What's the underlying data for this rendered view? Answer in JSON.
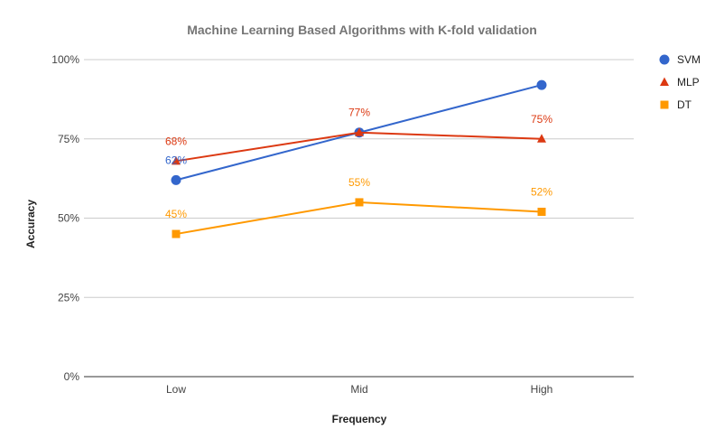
{
  "chart_data": {
    "type": "line",
    "title": "Machine Learning Based Algorithms with K-fold validation",
    "xlabel": "Frequency",
    "ylabel": "Accuracy",
    "categories": [
      "Low",
      "Mid",
      "High"
    ],
    "ylim": [
      0,
      100
    ],
    "yticks": [
      0,
      25,
      50,
      75,
      100
    ],
    "ytick_labels": [
      "0%",
      "25%",
      "50%",
      "75%",
      "100%"
    ],
    "grid": true,
    "legend_position": "right",
    "series": [
      {
        "name": "SVM",
        "color": "#3366cc",
        "marker": "circle",
        "values": [
          62,
          77,
          92
        ],
        "data_labels": [
          "62%",
          null,
          null
        ]
      },
      {
        "name": "MLP",
        "color": "#dc3912",
        "marker": "triangle",
        "values": [
          68,
          77,
          75
        ],
        "data_labels": [
          "68%",
          "77%",
          "75%"
        ]
      },
      {
        "name": "DT",
        "color": "#ff9900",
        "marker": "square",
        "values": [
          45,
          55,
          52
        ],
        "data_labels": [
          "45%",
          "55%",
          "52%"
        ]
      }
    ]
  }
}
